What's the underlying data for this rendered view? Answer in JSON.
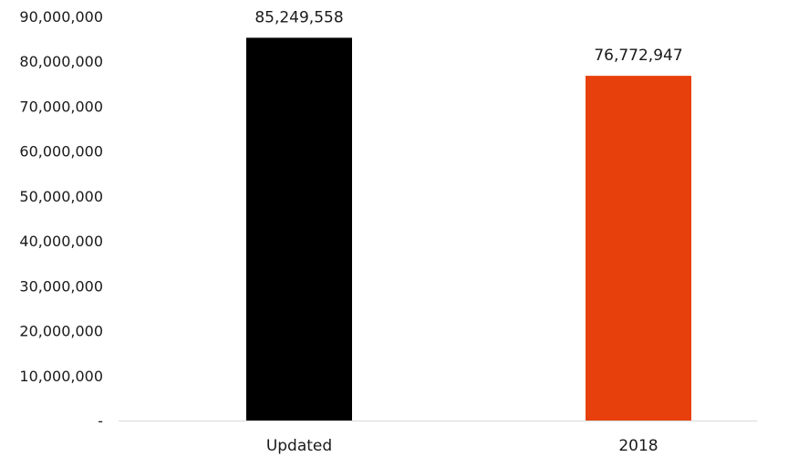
{
  "chart_data": {
    "type": "bar",
    "categories": [
      "Updated",
      "2018"
    ],
    "values": [
      85249558,
      76772947
    ],
    "value_labels": [
      "85,249,558",
      "76,772,947"
    ],
    "bar_colors": [
      "#000000",
      "#e8400c"
    ],
    "ylim": [
      0,
      90000000
    ],
    "yticks": [
      0,
      10000000,
      20000000,
      30000000,
      40000000,
      50000000,
      60000000,
      70000000,
      80000000,
      90000000
    ],
    "ytick_labels": [
      "-",
      "10,000,000",
      "20,000,000",
      "30,000,000",
      "40,000,000",
      "50,000,000",
      "60,000,000",
      "70,000,000",
      "80,000,000",
      "90,000,000"
    ],
    "title": "",
    "xlabel": "",
    "ylabel": "",
    "grid": false,
    "legend": "none",
    "axis_color": "#d9d9d9"
  }
}
